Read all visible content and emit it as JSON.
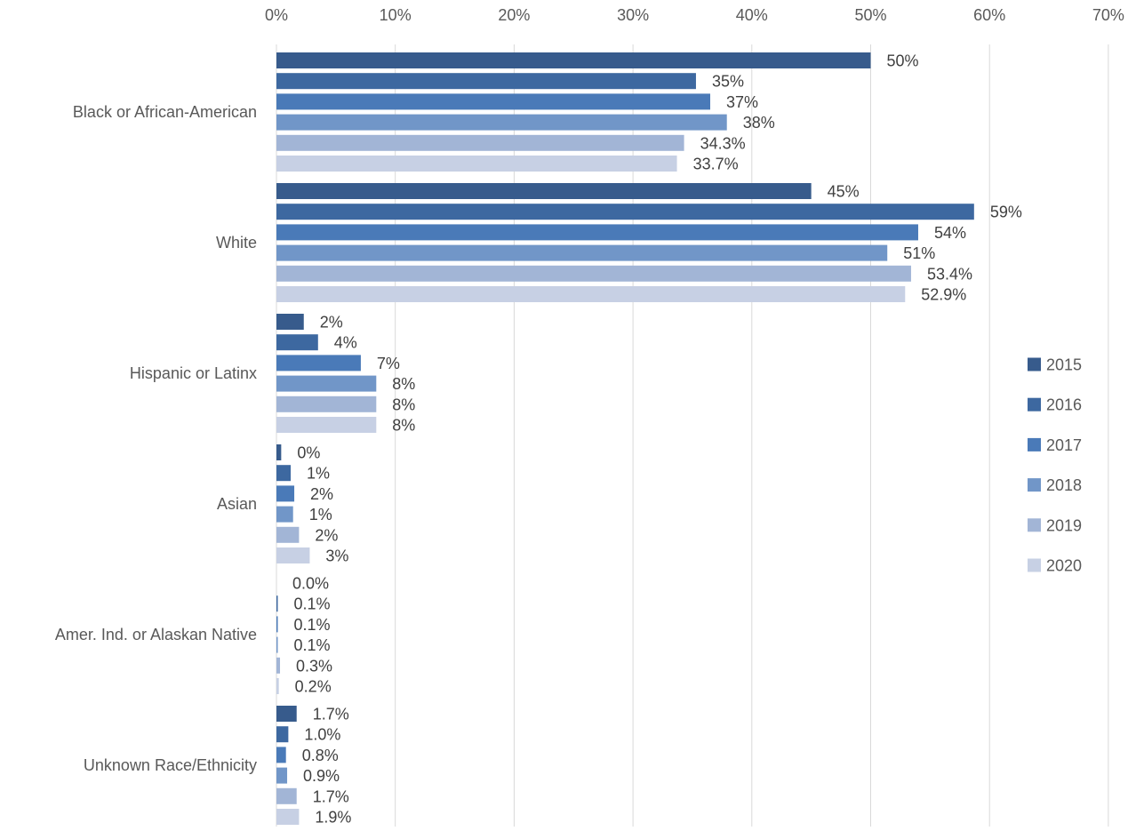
{
  "chart_data": {
    "type": "bar",
    "orientation": "horizontal",
    "categories": [
      "Black or African-American",
      "White",
      "Hispanic or Latinx",
      "Asian",
      "Amer. Ind. or Alaskan Native",
      "Unknown Race/Ethnicity"
    ],
    "series": [
      {
        "name": "2015",
        "color": "#375b8c",
        "values": [
          50,
          45,
          2.3,
          0.4,
          0.0,
          1.7
        ],
        "labels": [
          "50%",
          "45%",
          "2%",
          "0%",
          "0.0%",
          "1.7%"
        ]
      },
      {
        "name": "2016",
        "color": "#3d68a0",
        "values": [
          35.3,
          58.7,
          3.5,
          1.2,
          0.1,
          1.0
        ],
        "labels": [
          "35%",
          "59%",
          "4%",
          "1%",
          "0.1%",
          "1.0%"
        ]
      },
      {
        "name": "2017",
        "color": "#4a7ab8",
        "values": [
          36.5,
          54.0,
          7.1,
          1.5,
          0.1,
          0.8
        ],
        "labels": [
          "37%",
          "54%",
          "7%",
          "2%",
          "0.1%",
          "0.8%"
        ]
      },
      {
        "name": "2018",
        "color": "#7196c8",
        "values": [
          37.9,
          51.4,
          8.4,
          1.4,
          0.1,
          0.9
        ],
        "labels": [
          "38%",
          "51%",
          "8%",
          "1%",
          "0.1%",
          "0.9%"
        ]
      },
      {
        "name": "2019",
        "color": "#a2b5d6",
        "values": [
          34.3,
          53.4,
          8.4,
          1.9,
          0.3,
          1.7
        ],
        "labels": [
          "34.3%",
          "53.4%",
          "8%",
          "2%",
          "0.3%",
          "1.7%"
        ]
      },
      {
        "name": "2020",
        "color": "#c7d0e4",
        "values": [
          33.7,
          52.9,
          8.4,
          2.8,
          0.2,
          1.9
        ],
        "labels": [
          "33.7%",
          "52.9%",
          "8%",
          "3%",
          "0.2%",
          "1.9%"
        ]
      }
    ],
    "xaxis": {
      "ticks": [
        "0%",
        "10%",
        "20%",
        "30%",
        "40%",
        "50%",
        "60%",
        "70%"
      ],
      "range": [
        0,
        70
      ],
      "position": "top"
    },
    "grid": true,
    "legend_position": "right",
    "gridline_color": "#d9d9d9",
    "text_color": "#595959",
    "label_color": "#404040"
  }
}
